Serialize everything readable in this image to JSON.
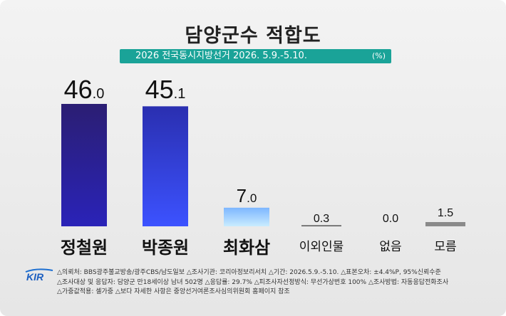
{
  "title": "담양군수 적합도",
  "subtitle": "2026 전국동시지방선거 2026. 5.9.-5.10.",
  "unit": "(%)",
  "colors": {
    "accent": "#1aa398",
    "bar_top_dark": "#2b1e73",
    "bar_bottom_dark": "#2a23b8",
    "bar_light_top": "#7db6ff",
    "bar_light_bottom": "#c9ecff",
    "bar_gray": "#8a8a8a"
  },
  "chart_data": {
    "type": "bar",
    "categories": [
      "정철원",
      "박종원",
      "최화삼",
      "이외인물",
      "없음",
      "모름"
    ],
    "values": [
      46.0,
      45.1,
      7.0,
      0.3,
      0.0,
      1.5
    ],
    "value_labels": [
      {
        "int": "46",
        "dec": ".0"
      },
      {
        "int": "45",
        "dec": ".1"
      },
      {
        "int": "7",
        "dec": ".0"
      },
      {
        "int": "0.3",
        "dec": ""
      },
      {
        "int": "0.0",
        "dec": ""
      },
      {
        "int": "1.5",
        "dec": ""
      }
    ],
    "title": "담양군수 적합도",
    "xlabel": "",
    "ylabel": "",
    "ylim": [
      0,
      50
    ]
  },
  "footer": {
    "logo": "KIR",
    "lines": [
      "△의뢰처: BBS광주불교방송/광주CBS/남도일보  △조사기관: 코리아정보리서치  △기간: 2026.5.9.-5.10.  △표본오차: ±4.4%P, 95%신뢰수준",
      "△조사대상 및 응답자: 담양군 만18세이상 남녀 502명  △응답률: 29.7%  △피조사자선정방식: 무선가상번호 100%  △조사방법: 자동응답전화조사",
      "△가중값적용: 셀가중  △보다 자세한 사항은 중앙선거여론조사심의위원회 홈페이지 참조"
    ]
  }
}
